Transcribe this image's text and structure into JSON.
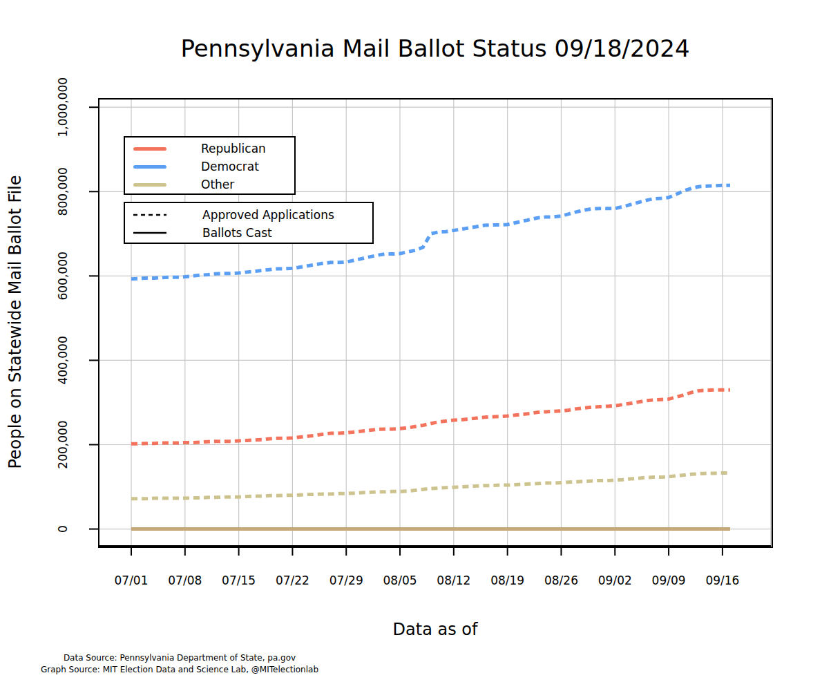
{
  "chart_data": {
    "type": "line",
    "title": "Pennsylvania Mail Ballot Status 09/18/2024",
    "x_label": "Data as of",
    "y_label": "People on Statewide Mail Ballot File",
    "source": [
      "Data Source: Pennsylvania Department of State, pa.gov",
      "Graph Source: MIT Election Data and Science Lab, @MITelectionlab"
    ],
    "grid": true,
    "legend": "upper left",
    "categories": [
      "07/01",
      null,
      null,
      null,
      null,
      null,
      null,
      "07/08",
      null,
      null,
      null,
      null,
      null,
      null,
      "07/15",
      null,
      null,
      null,
      null,
      null,
      null,
      "07/22",
      null,
      null,
      null,
      null,
      null,
      null,
      "07/29",
      null,
      null,
      null,
      null,
      null,
      null,
      "08/05",
      null,
      null,
      null,
      null,
      null,
      null,
      "08/12",
      null,
      null,
      null,
      null,
      null,
      null,
      "08/19",
      null,
      null,
      null,
      null,
      null,
      null,
      "08/26",
      null,
      null,
      null,
      null,
      null,
      null,
      "09/02",
      null,
      null,
      null,
      null,
      null,
      null,
      "09/09",
      null,
      null,
      null,
      null,
      null,
      null,
      "09/16",
      null
    ],
    "ylim": [
      -40000,
      1020000
    ],
    "yticks": [
      0,
      {
        "value": 200000,
        "label": "200,000"
      },
      {
        "value": 400000,
        "label": "400,000"
      },
      {
        "value": 600000,
        "label": "600,000"
      },
      {
        "value": 800000,
        "label": "800,000"
      },
      {
        "value": 1000000,
        "label": "1,000,000"
      }
    ],
    "series": [
      {
        "name": "Republican",
        "status": "Approved Applications",
        "color": "#f4735c",
        "line_style": "dotted",
        "values": [
          202000,
          202000,
          203000,
          203000,
          204000,
          204000,
          204000,
          205000,
          205000,
          206000,
          207000,
          208000,
          208000,
          208000,
          209000,
          210000,
          211000,
          212000,
          214000,
          215000,
          215000,
          216000,
          218000,
          220000,
          222000,
          225000,
          227000,
          227000,
          228000,
          230000,
          232000,
          234000,
          236000,
          237000,
          237000,
          238000,
          240000,
          243000,
          246000,
          250000,
          254000,
          256000,
          258000,
          259000,
          261000,
          263000,
          265000,
          266000,
          267000,
          268000,
          270000,
          272000,
          274000,
          277000,
          278000,
          279000,
          280000,
          282000,
          285000,
          287000,
          289000,
          290000,
          291000,
          292000,
          295000,
          298000,
          301000,
          304000,
          306000,
          307000,
          308000,
          313000,
          318000,
          324000,
          328000,
          329000,
          330000,
          330000,
          330000
        ]
      },
      {
        "name": "Democrat",
        "status": "Approved Applications",
        "color": "#5b9ff5",
        "line_style": "dotted",
        "values": [
          593000,
          594000,
          595000,
          595000,
          596000,
          597000,
          597000,
          598000,
          600000,
          602000,
          603000,
          605000,
          606000,
          606000,
          607000,
          609000,
          611000,
          613000,
          615000,
          617000,
          617000,
          618000,
          621000,
          624000,
          627000,
          630000,
          632000,
          632000,
          633000,
          637000,
          641000,
          645000,
          649000,
          652000,
          652000,
          653000,
          657000,
          661000,
          668000,
          700000,
          704000,
          705000,
          708000,
          711000,
          714000,
          717000,
          720000,
          721000,
          721000,
          722000,
          726000,
          730000,
          734000,
          738000,
          740000,
          740000,
          742000,
          747000,
          752000,
          756000,
          759000,
          760000,
          760000,
          760000,
          764000,
          769000,
          774000,
          779000,
          783000,
          784000,
          786000,
          794000,
          802000,
          808000,
          812000,
          813000,
          814000,
          815000,
          815000
        ]
      },
      {
        "name": "Other",
        "status": "Approved Applications",
        "color": "#cdc38e",
        "line_style": "dotted",
        "values": [
          72000,
          72000,
          72000,
          73000,
          73000,
          73000,
          73000,
          73000,
          74000,
          74000,
          75000,
          75000,
          76000,
          76000,
          76000,
          77000,
          78000,
          78000,
          79000,
          79000,
          80000,
          80000,
          81000,
          82000,
          82000,
          83000,
          83000,
          84000,
          84000,
          85000,
          86000,
          87000,
          88000,
          88000,
          89000,
          89000,
          90000,
          92000,
          94000,
          96000,
          97000,
          98000,
          99000,
          100000,
          101000,
          102000,
          103000,
          103000,
          104000,
          104000,
          105000,
          106000,
          107000,
          108000,
          109000,
          109000,
          110000,
          111000,
          112000,
          113000,
          114000,
          115000,
          115000,
          116000,
          117000,
          119000,
          120000,
          122000,
          123000,
          123000,
          124000,
          126000,
          128000,
          130000,
          131000,
          132000,
          132000,
          133000,
          133000
        ]
      },
      {
        "name": "Republican",
        "status": "Ballots Cast",
        "color": "#f4735c",
        "line_style": "solid",
        "values": [
          0,
          0,
          0,
          0,
          0,
          0,
          0,
          0,
          0,
          0,
          0,
          0,
          0,
          0,
          0,
          0,
          0,
          0,
          0,
          0,
          0,
          0,
          0,
          0,
          0,
          0,
          0,
          0,
          0,
          0,
          0,
          0,
          0,
          0,
          0,
          0,
          0,
          0,
          0,
          0,
          0,
          0,
          0,
          0,
          0,
          0,
          0,
          0,
          0,
          0,
          0,
          0,
          0,
          0,
          0,
          0,
          0,
          0,
          0,
          0,
          0,
          0,
          0,
          0,
          0,
          0,
          0,
          0,
          0,
          0,
          0,
          0,
          0,
          0,
          0,
          0,
          0,
          0,
          0
        ]
      },
      {
        "name": "Democrat",
        "status": "Ballots Cast",
        "color": "#5b9ff5",
        "line_style": "solid",
        "values": [
          0,
          0,
          0,
          0,
          0,
          0,
          0,
          0,
          0,
          0,
          0,
          0,
          0,
          0,
          0,
          0,
          0,
          0,
          0,
          0,
          0,
          0,
          0,
          0,
          0,
          0,
          0,
          0,
          0,
          0,
          0,
          0,
          0,
          0,
          0,
          0,
          0,
          0,
          0,
          0,
          0,
          0,
          0,
          0,
          0,
          0,
          0,
          0,
          0,
          0,
          0,
          0,
          0,
          0,
          0,
          0,
          0,
          0,
          0,
          0,
          0,
          0,
          0,
          0,
          0,
          0,
          0,
          0,
          0,
          0,
          0,
          0,
          0,
          0,
          0,
          0,
          0,
          0,
          0
        ]
      },
      {
        "name": "Other",
        "status": "Ballots Cast",
        "color": "#c4a878",
        "line_style": "solid",
        "values": [
          0,
          0,
          0,
          0,
          0,
          0,
          0,
          0,
          0,
          0,
          0,
          0,
          0,
          0,
          0,
          0,
          0,
          0,
          0,
          0,
          0,
          0,
          0,
          0,
          0,
          0,
          0,
          0,
          0,
          0,
          0,
          0,
          0,
          0,
          0,
          0,
          0,
          0,
          0,
          0,
          0,
          0,
          0,
          0,
          0,
          0,
          0,
          0,
          0,
          0,
          0,
          0,
          0,
          0,
          0,
          0,
          0,
          0,
          0,
          0,
          0,
          0,
          0,
          0,
          0,
          0,
          0,
          0,
          0,
          0,
          0,
          0,
          0,
          0,
          0,
          0,
          0,
          0,
          0
        ]
      }
    ]
  }
}
